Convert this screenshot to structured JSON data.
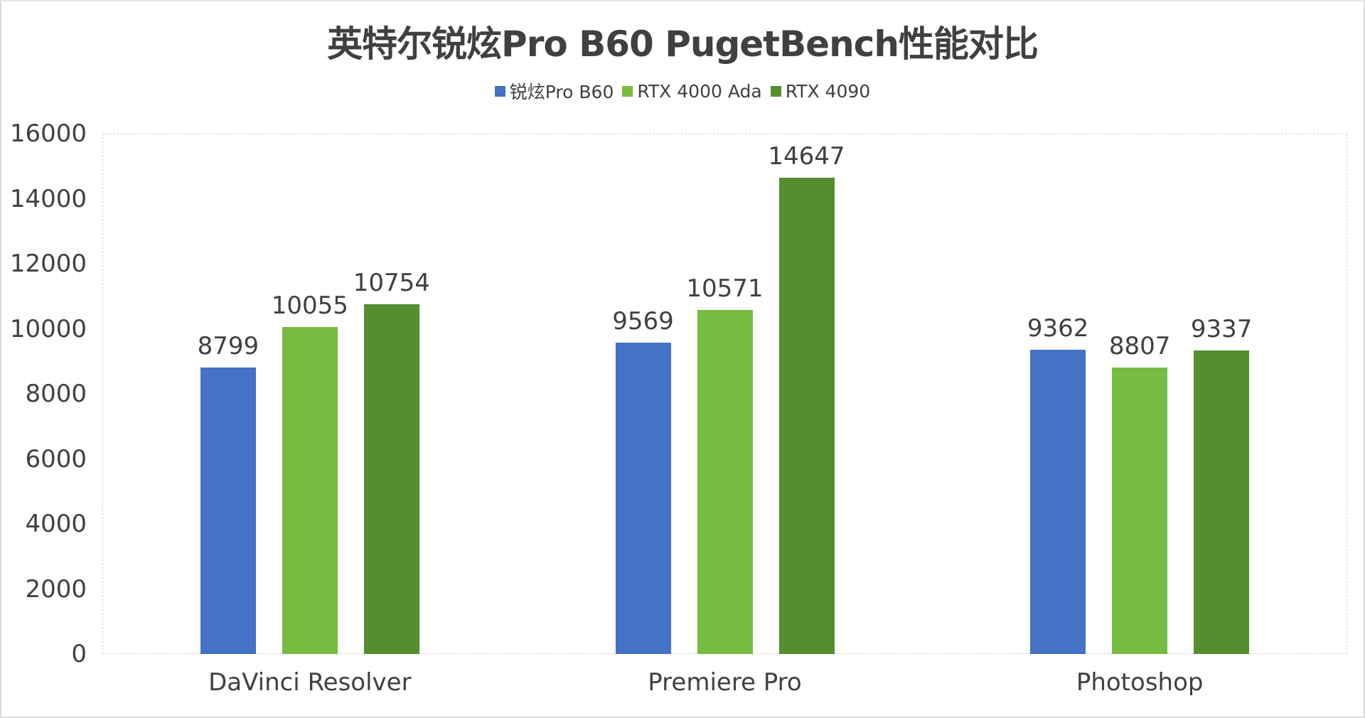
{
  "chart_data": {
    "type": "bar",
    "title": "英特尔锐炫Pro B60 PugetBench性能对比",
    "xlabel": "",
    "ylabel": "",
    "ylim": [
      0,
      16000
    ],
    "yticks": [
      0,
      2000,
      4000,
      6000,
      8000,
      10000,
      12000,
      14000,
      16000
    ],
    "grid": false,
    "legend_position": "top",
    "categories": [
      "DaVinci Resolver",
      "Premiere Pro",
      "Photoshop"
    ],
    "series": [
      {
        "name": "锐炫Pro B60",
        "color": "#4472C4",
        "values": [
          8799,
          9569,
          9362
        ]
      },
      {
        "name": "RTX 4000 Ada",
        "color": "#77BB41",
        "values": [
          10055,
          10571,
          8807
        ]
      },
      {
        "name": "RTX 4090",
        "color": "#548E2F",
        "values": [
          10754,
          14647,
          9337
        ]
      }
    ]
  }
}
